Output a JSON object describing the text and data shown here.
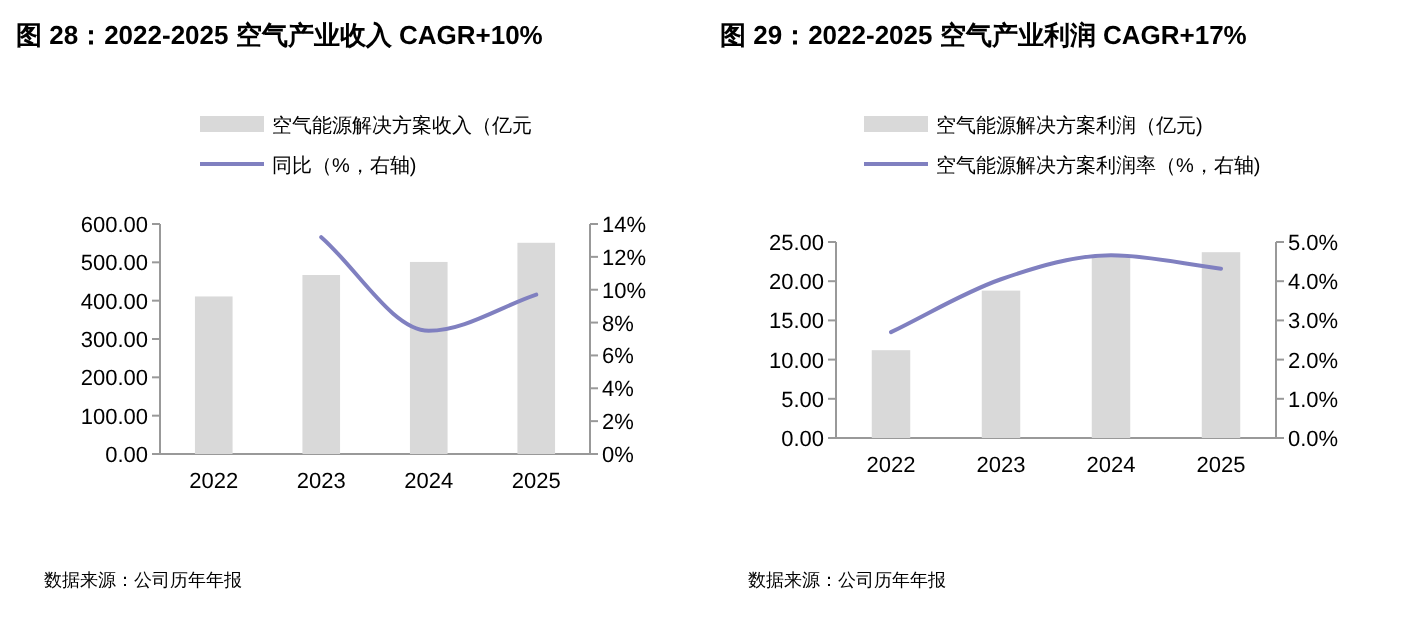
{
  "chart_data": [
    {
      "type": "bar",
      "title": "图 28：2022-2025 空气产业收入 CAGR+10%",
      "annotations": [
        "数据来源：公司历年年报"
      ],
      "categories": [
        "2022",
        "2023",
        "2024",
        "2025"
      ],
      "legend": "top",
      "series": [
        {
          "name": "空气能源解决方案收入（亿元",
          "color": "#d9d9d9",
          "values": [
            411,
            467,
            501,
            551
          ]
        },
        {
          "name": "同比（%，右轴)",
          "type": "line",
          "axis": "y2",
          "color": "#8080c0",
          "values": [
            null,
            13.2,
            7.5,
            9.7
          ]
        }
      ],
      "ylim": [
        0,
        600
      ],
      "yticks": [
        {
          "value": 0,
          "label": "0.00"
        },
        {
          "value": 100,
          "label": "100.00"
        },
        {
          "value": 200,
          "label": "200.00"
        },
        {
          "value": 300,
          "label": "300.00"
        },
        {
          "value": 400,
          "label": "400.00"
        },
        {
          "value": 500,
          "label": "500.00"
        },
        {
          "value": 600,
          "label": "600.00"
        }
      ],
      "y2lim": [
        0,
        14
      ],
      "y2ticks": [
        {
          "value": 0,
          "label": "0%"
        },
        {
          "value": 2,
          "label": "2%"
        },
        {
          "value": 4,
          "label": "4%"
        },
        {
          "value": 6,
          "label": "6%"
        },
        {
          "value": 8,
          "label": "8%"
        },
        {
          "value": 10,
          "label": "10%"
        },
        {
          "value": 12,
          "label": "12%"
        },
        {
          "value": 14,
          "label": "14%"
        }
      ]
    },
    {
      "type": "bar",
      "title": "图 29：2022-2025 空气产业利润 CAGR+17%",
      "annotations": [
        "数据来源：公司历年年报"
      ],
      "categories": [
        "2022",
        "2023",
        "2024",
        "2025"
      ],
      "legend": "top",
      "series": [
        {
          "name": "空气能源解决方案利润（亿元)",
          "color": "#d9d9d9",
          "values": [
            11.2,
            18.8,
            23.3,
            23.7
          ]
        },
        {
          "name": "空气能源解决方案利润率（%，右轴)",
          "type": "line",
          "axis": "y2",
          "color": "#8080c0",
          "values": [
            2.7,
            4.05,
            4.66,
            4.32
          ]
        }
      ],
      "ylim": [
        0,
        25
      ],
      "yticks": [
        {
          "value": 0,
          "label": "0.00"
        },
        {
          "value": 5,
          "label": "5.00"
        },
        {
          "value": 10,
          "label": "10.00"
        },
        {
          "value": 15,
          "label": "15.00"
        },
        {
          "value": 20,
          "label": "20.00"
        },
        {
          "value": 25,
          "label": "25.00"
        }
      ],
      "y2lim": [
        0,
        5
      ],
      "y2ticks": [
        {
          "value": 0,
          "label": "0.0%"
        },
        {
          "value": 1,
          "label": "1.0%"
        },
        {
          "value": 2,
          "label": "2.0%"
        },
        {
          "value": 3,
          "label": "3.0%"
        },
        {
          "value": 4,
          "label": "4.0%"
        },
        {
          "value": 5,
          "label": "5.0%"
        }
      ]
    }
  ]
}
